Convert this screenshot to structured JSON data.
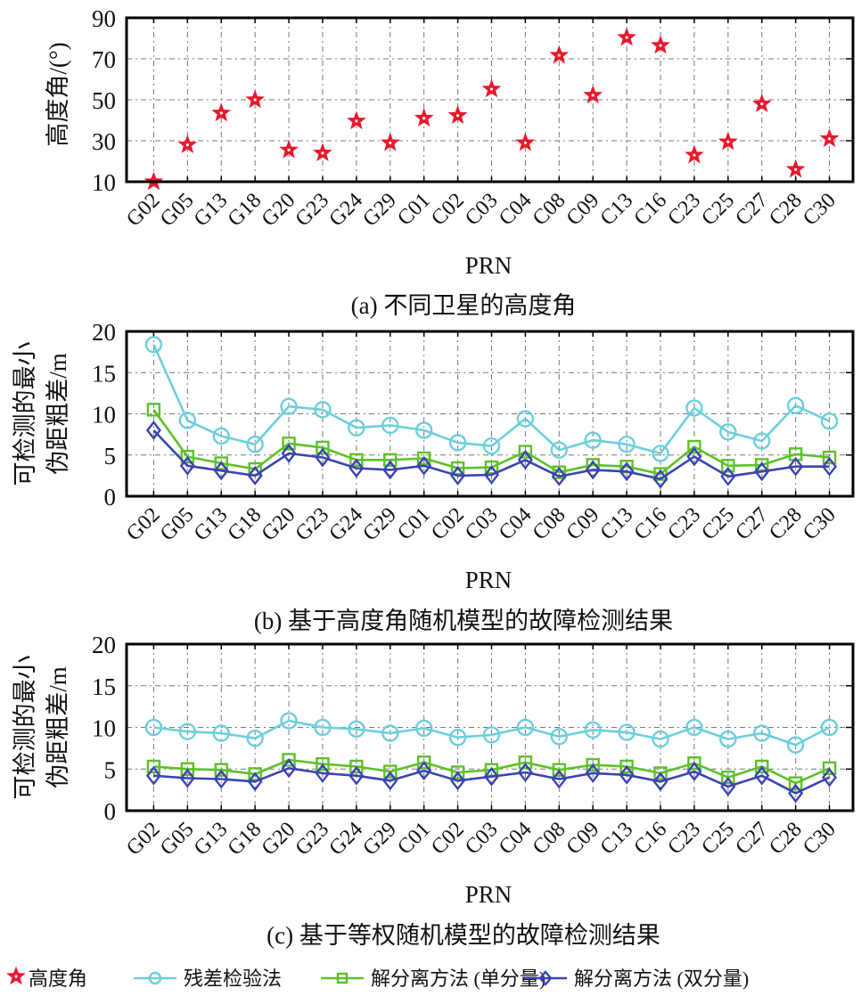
{
  "chart_data": [
    {
      "id": "a",
      "type": "scatter",
      "caption": "(a) 不同卫星的高度角",
      "xlabel": "PRN",
      "ylabel": "高度角/(°)",
      "ylim": [
        10,
        90
      ],
      "yticks": [
        10,
        30,
        50,
        70,
        90
      ],
      "grid": true,
      "categories": [
        "G02",
        "G05",
        "G13",
        "G18",
        "G20",
        "G23",
        "G24",
        "G29",
        "C01",
        "C02",
        "C03",
        "C04",
        "C08",
        "C09",
        "C13",
        "C16",
        "C23",
        "C25",
        "C27",
        "C28",
        "C30"
      ],
      "series": [
        {
          "name": "高度角",
          "marker": "star",
          "color": "#e8192c",
          "values": [
            10,
            28,
            43.5,
            50,
            25.5,
            24,
            39.6,
            29,
            41,
            42.3,
            55.2,
            29,
            71.7,
            52.2,
            80.4,
            76.5,
            23,
            29.5,
            48,
            16,
            31
          ]
        }
      ]
    },
    {
      "id": "b",
      "type": "line",
      "caption": "(b) 基于高度角随机模型的故障检测结果",
      "xlabel": "PRN",
      "ylabel": [
        "可检测的最小",
        "伪距粗差/m"
      ],
      "ylim": [
        0,
        20
      ],
      "yticks": [
        0,
        5,
        10,
        15,
        20
      ],
      "grid": true,
      "categories": [
        "G02",
        "G05",
        "G13",
        "G18",
        "G20",
        "G23",
        "G24",
        "G29",
        "C01",
        "C02",
        "C03",
        "C04",
        "C08",
        "C09",
        "C13",
        "C16",
        "C23",
        "C25",
        "C27",
        "C28",
        "C30"
      ],
      "series": [
        {
          "name": "残差检验法",
          "marker": "circle",
          "color": "#6ccfdc",
          "values": [
            18.4,
            9.2,
            7.3,
            6.3,
            10.9,
            10.5,
            8.3,
            8.6,
            8.0,
            6.5,
            6.1,
            9.4,
            5.6,
            6.8,
            6.3,
            5.2,
            10.7,
            7.8,
            6.7,
            11.0,
            9.1
          ]
        },
        {
          "name": "解分离方法 (单分量)",
          "marker": "square",
          "color": "#5cc12a",
          "values": [
            10.5,
            4.8,
            4.0,
            3.3,
            6.4,
            5.9,
            4.4,
            4.4,
            4.6,
            3.4,
            3.5,
            5.4,
            2.9,
            3.8,
            3.6,
            2.7,
            6.0,
            3.7,
            3.8,
            5.1,
            4.7
          ]
        },
        {
          "name": "解分离方法 (双分量)",
          "marker": "diamond",
          "color": "#3a44b0",
          "values": [
            8.0,
            3.7,
            3.1,
            2.5,
            5.2,
            4.7,
            3.4,
            3.2,
            3.7,
            2.5,
            2.6,
            4.4,
            2.4,
            3.2,
            3.0,
            2.1,
            4.8,
            2.4,
            3.0,
            3.6,
            3.6
          ]
        }
      ]
    },
    {
      "id": "c",
      "type": "line",
      "caption": "(c) 基于等权随机模型的故障检测结果",
      "xlabel": "PRN",
      "ylabel": [
        "可检测的最小",
        "伪距粗差/m"
      ],
      "ylim": [
        0,
        20
      ],
      "yticks": [
        0,
        5,
        10,
        15,
        20
      ],
      "grid": true,
      "categories": [
        "G02",
        "G05",
        "G13",
        "G18",
        "G20",
        "G23",
        "G24",
        "G29",
        "C01",
        "C02",
        "C03",
        "C04",
        "C08",
        "C09",
        "C13",
        "C16",
        "C23",
        "C25",
        "C27",
        "C28",
        "C30"
      ],
      "series": [
        {
          "name": "残差检验法",
          "marker": "circle",
          "color": "#6ccfdc",
          "values": [
            10.0,
            9.5,
            9.3,
            8.7,
            10.8,
            10.0,
            9.8,
            9.3,
            9.9,
            8.8,
            9.1,
            10.0,
            8.9,
            9.7,
            9.4,
            8.6,
            10.0,
            8.6,
            9.3,
            7.9,
            10.0
          ]
        },
        {
          "name": "解分离方法 (单分量)",
          "marker": "square",
          "color": "#5cc12a",
          "values": [
            5.3,
            5.0,
            4.9,
            4.4,
            6.1,
            5.6,
            5.3,
            4.7,
            5.8,
            4.6,
            4.9,
            5.8,
            4.9,
            5.5,
            5.3,
            4.5,
            5.7,
            4.0,
            5.3,
            3.3,
            5.1
          ]
        },
        {
          "name": "解分离方法 (双分量)",
          "marker": "diamond",
          "color": "#3a44b0",
          "values": [
            4.2,
            3.9,
            3.8,
            3.5,
            5.1,
            4.5,
            4.2,
            3.6,
            4.8,
            3.6,
            4.1,
            4.6,
            3.8,
            4.5,
            4.3,
            3.5,
            4.7,
            2.9,
            4.2,
            2.1,
            4.0
          ]
        }
      ]
    }
  ],
  "legend": {
    "position": "bottom",
    "items": [
      {
        "label": "高度角",
        "marker": "star",
        "color": "#e8192c"
      },
      {
        "label": "残差检验法",
        "marker": "circle",
        "color": "#6ccfdc"
      },
      {
        "label": "解分离方法 (单分量)",
        "marker": "square",
        "color": "#5cc12a"
      },
      {
        "label": "解分离方法 (双分量)",
        "marker": "diamond",
        "color": "#3a44b0"
      }
    ]
  }
}
